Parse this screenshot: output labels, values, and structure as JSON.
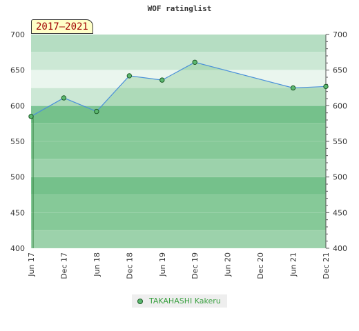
{
  "chart_data": {
    "type": "area",
    "title": "WOF ratinglist",
    "period_badge": "2017–2021",
    "x_ticks": [
      "Jun 17",
      "Dec 17",
      "Jun 18",
      "Dec 18",
      "Jun 19",
      "Dec 19",
      "Jun 20",
      "Dec 20",
      "Jun 21",
      "Dec 21"
    ],
    "ylim": [
      400,
      700
    ],
    "y_ticks": [
      400,
      450,
      500,
      550,
      600,
      650,
      700
    ],
    "series": [
      {
        "name": "TAKAHASHI Kakeru",
        "points": [
          {
            "x": "Jun 17",
            "y": 585
          },
          {
            "x": "Dec 17",
            "y": 611
          },
          {
            "x": "Jun 18",
            "y": 592
          },
          {
            "x": "Dec 18",
            "y": 642
          },
          {
            "x": "Jun 19",
            "y": 636
          },
          {
            "x": "Dec 19",
            "y": 661
          },
          {
            "x": "Jun 21",
            "y": 625
          },
          {
            "x": "Dec 21",
            "y": 627
          }
        ]
      }
    ],
    "grid": true,
    "legend_position": "bottom-center",
    "colors": {
      "line": "#4a90d9",
      "marker_fill": "#5cb870",
      "marker_stroke": "#1b5a25",
      "legend_text": "#3aa040",
      "band_dark": "#7ec596",
      "band_mid": "#96d0a8",
      "band_light": "#b5ddc2",
      "band_pale": "#cce8d5",
      "band_palest": "#eaf6ee"
    }
  }
}
